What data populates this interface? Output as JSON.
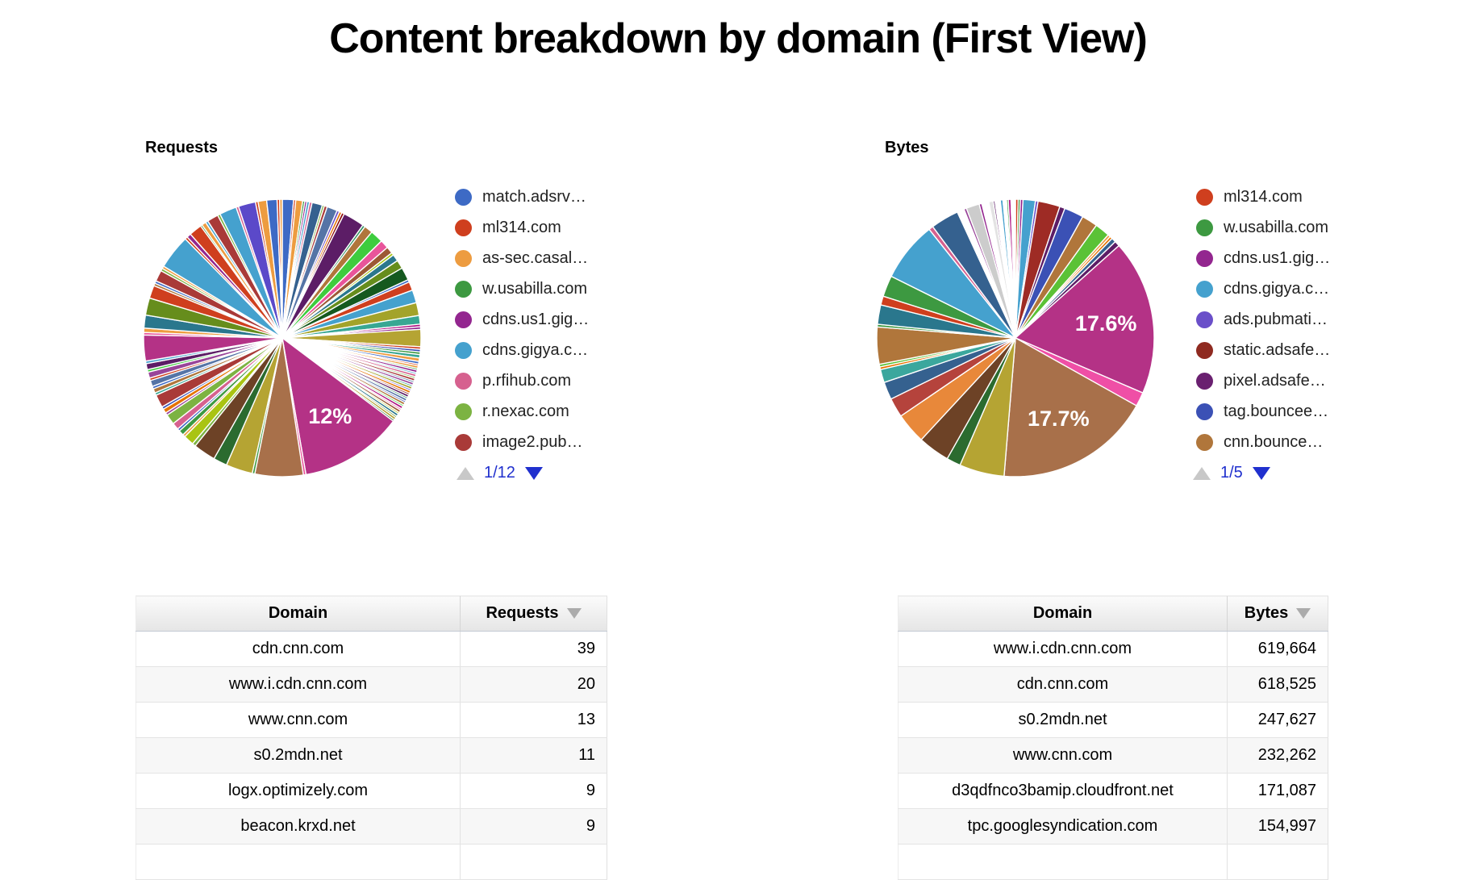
{
  "page": {
    "title": "Content breakdown by domain (First View)"
  },
  "colors": {
    "pagination_active": "#2030ce",
    "pagination_disabled": "#c8c8c8",
    "sort_arrow": "#ababab",
    "percent_label": "#ffffff"
  },
  "chart_data": [
    {
      "type": "pie",
      "section_label": "Requests",
      "legend_position": "right",
      "legend_page": "1/12",
      "legend": [
        {
          "label": "match.adsrv…",
          "color": "#3d6ac5"
        },
        {
          "label": "ml314.com",
          "color": "#cf3f1e"
        },
        {
          "label": "as-sec.casal…",
          "color": "#ed9c40"
        },
        {
          "label": "w.usabilla.com",
          "color": "#3d9941"
        },
        {
          "label": "cdns.us1.gig…",
          "color": "#93268f"
        },
        {
          "label": "cdns.gigya.c…",
          "color": "#45a1ce"
        },
        {
          "label": "p.rfihub.com",
          "color": "#d6618f"
        },
        {
          "label": "r.nexac.com",
          "color": "#7cb342"
        },
        {
          "label": "image2.pub…",
          "color": "#a93a38"
        }
      ],
      "slices": [
        [
          1.3,
          "#3d6ac5"
        ],
        [
          0.25,
          "#cf3f1e"
        ],
        [
          0.8,
          "#ed9c40"
        ],
        [
          0.25,
          "#3d9941"
        ],
        [
          0.25,
          "#93268f"
        ],
        [
          0.3,
          "#45a1ce"
        ],
        [
          0.3,
          "#d6618f"
        ],
        [
          1.2,
          "#35618f"
        ],
        [
          0.25,
          "#7cb342"
        ],
        [
          0.35,
          "#a93a38"
        ],
        [
          1.2,
          "#5574a6"
        ],
        [
          0.3,
          "#6a4fc9"
        ],
        [
          0.3,
          "#e67300"
        ],
        [
          0.3,
          "#8b0707"
        ],
        [
          2.5,
          "#5c1d66"
        ],
        [
          0.3,
          "#329262"
        ],
        [
          1.0,
          "#b0763b"
        ],
        [
          1.5,
          "#3ecc3e"
        ],
        [
          1.0,
          "#e8559a"
        ],
        [
          0.8,
          "#9c5935"
        ],
        [
          0.3,
          "#a9c413"
        ],
        [
          0.8,
          "#2a778d"
        ],
        [
          1.0,
          "#668d1c"
        ],
        [
          1.5,
          "#15591f"
        ],
        [
          0.3,
          "#3d6ac5"
        ],
        [
          1.0,
          "#cf3f1e"
        ],
        [
          1.5,
          "#45a1ce"
        ],
        [
          1.5,
          "#a3a32a"
        ],
        [
          1.0,
          "#38a793"
        ],
        [
          0.3,
          "#b01383"
        ],
        [
          0.3,
          "#93268f"
        ],
        [
          2.0,
          "#b5a433"
        ],
        [
          0.3,
          "#cf3f1e"
        ],
        [
          0.3,
          "#3b51b5"
        ],
        [
          0.3,
          "#3d9941"
        ],
        [
          0.4,
          "#38a793"
        ],
        [
          0.4,
          "#ed9c40"
        ],
        [
          0.3,
          "#3d6ac5"
        ],
        [
          0.2,
          "#cf3f1e"
        ],
        [
          0.3,
          "#ed9c40"
        ],
        [
          0.2,
          "#3d9941"
        ],
        [
          0.3,
          "#93268f"
        ],
        [
          0.2,
          "#45a1ce"
        ],
        [
          0.3,
          "#d6618f"
        ],
        [
          0.2,
          "#7cb342"
        ],
        [
          0.3,
          "#a93a38"
        ],
        [
          0.2,
          "#35618f"
        ],
        [
          0.3,
          "#994499"
        ],
        [
          0.2,
          "#38a793"
        ],
        [
          0.3,
          "#a3a32a"
        ],
        [
          0.2,
          "#6a4fc9"
        ],
        [
          0.3,
          "#e67300"
        ],
        [
          0.2,
          "#8b0707"
        ],
        [
          0.3,
          "#5c1d66"
        ],
        [
          0.2,
          "#329262"
        ],
        [
          0.3,
          "#5574a6"
        ],
        [
          0.2,
          "#3b51b5"
        ],
        [
          0.3,
          "#b0763b"
        ],
        [
          0.2,
          "#3ecc3e"
        ],
        [
          0.3,
          "#b01383"
        ],
        [
          0.2,
          "#e8559a"
        ],
        [
          0.3,
          "#9c5935"
        ],
        [
          0.2,
          "#a9c413"
        ],
        [
          0.3,
          "#2a778d"
        ],
        [
          0.2,
          "#668d1c"
        ],
        [
          0.3,
          "#b5a433"
        ],
        [
          0.2,
          "#15591f"
        ],
        [
          12.0,
          "#b43286",
          "12%"
        ],
        [
          0.3,
          "#e8559a"
        ],
        [
          5.6,
          "#a8704a"
        ],
        [
          0.3,
          "#3d9941"
        ],
        [
          3.1,
          "#b5a433"
        ],
        [
          1.6,
          "#2b6b2f"
        ],
        [
          2.6,
          "#6d4226"
        ],
        [
          0.4,
          "#7cb342"
        ],
        [
          1.2,
          "#a9c413"
        ],
        [
          0.3,
          "#ed9c40"
        ],
        [
          0.6,
          "#3d9941"
        ],
        [
          0.3,
          "#3d6ac5"
        ],
        [
          0.8,
          "#d6618f"
        ],
        [
          1.2,
          "#7cb342"
        ],
        [
          0.3,
          "#994499"
        ],
        [
          0.5,
          "#e67300"
        ],
        [
          0.3,
          "#3b51b5"
        ],
        [
          1.5,
          "#a93a38"
        ],
        [
          0.3,
          "#38a793"
        ],
        [
          0.5,
          "#b0763b"
        ],
        [
          0.3,
          "#3d6ac5"
        ],
        [
          0.7,
          "#5574a6"
        ],
        [
          0.3,
          "#cf3f1e"
        ],
        [
          0.7,
          "#994499"
        ],
        [
          0.3,
          "#3ecc3e"
        ],
        [
          0.7,
          "#5c1d66"
        ],
        [
          0.3,
          "#45a1ce"
        ],
        [
          3.0,
          "#b43286"
        ],
        [
          0.3,
          "#e8559a"
        ],
        [
          0.5,
          "#ed9c40"
        ],
        [
          1.5,
          "#2a778d"
        ],
        [
          2.0,
          "#668d1c"
        ],
        [
          1.5,
          "#cf3f1e"
        ],
        [
          0.3,
          "#b0763b"
        ],
        [
          0.3,
          "#3d6ac5"
        ],
        [
          1.3,
          "#a93a38"
        ],
        [
          0.3,
          "#7cb342"
        ],
        [
          0.3,
          "#ed9c40"
        ],
        [
          4.0,
          "#45a1ce"
        ],
        [
          0.3,
          "#cf3f1e"
        ],
        [
          0.5,
          "#93268f"
        ],
        [
          1.5,
          "#cf3f1e"
        ],
        [
          0.2,
          "#3d9941"
        ],
        [
          0.5,
          "#ed9c40"
        ],
        [
          0.3,
          "#45a1ce"
        ],
        [
          1.3,
          "#a93a38"
        ],
        [
          0.3,
          "#7cb342"
        ],
        [
          2.0,
          "#45a1ce"
        ],
        [
          0.3,
          "#d6618f"
        ],
        [
          2.0,
          "#5b49c9"
        ],
        [
          0.3,
          "#cf3f1e"
        ],
        [
          1.0,
          "#ed9c40"
        ],
        [
          1.2,
          "#3d6ac5"
        ],
        [
          0.3,
          "#cf3f1e"
        ],
        [
          0.3,
          "#ed9c40"
        ]
      ]
    },
    {
      "type": "pie",
      "section_label": "Bytes",
      "legend_position": "right",
      "legend_page": "1/5",
      "legend": [
        {
          "label": "ml314.com",
          "color": "#cf3f1e"
        },
        {
          "label": "w.usabilla.com",
          "color": "#3d9941"
        },
        {
          "label": "cdns.us1.gig…",
          "color": "#93268f"
        },
        {
          "label": "cdns.gigya.c…",
          "color": "#45a1ce"
        },
        {
          "label": "ads.pubmati…",
          "color": "#6a4fc9"
        },
        {
          "label": "static.adsafe…",
          "color": "#8f2a20"
        },
        {
          "label": "pixel.adsafe…",
          "color": "#6a2070"
        },
        {
          "label": "tag.bouncee…",
          "color": "#3b51b5"
        },
        {
          "label": "cnn.bounce…",
          "color": "#b0763b"
        }
      ],
      "slices": [
        [
          0.3,
          "#cf3f1e"
        ],
        [
          0.25,
          "#3d9941"
        ],
        [
          0.3,
          "#93268f"
        ],
        [
          1.4,
          "#45a1ce"
        ],
        [
          0.3,
          "#6a4fc9"
        ],
        [
          2.5,
          "#9e2b25"
        ],
        [
          0.6,
          "#5c1d66"
        ],
        [
          2.2,
          "#3b51b5"
        ],
        [
          1.8,
          "#b0763b"
        ],
        [
          1.7,
          "#5bc236"
        ],
        [
          0.3,
          "#ed9c40"
        ],
        [
          0.3,
          "#e67300"
        ],
        [
          0.5,
          "#35618f"
        ],
        [
          0.6,
          "#5c1d66"
        ],
        [
          17.6,
          "#b43286",
          "17.6%"
        ],
        [
          1.6,
          "#ef4fa6"
        ],
        [
          17.7,
          "#a8704a",
          "17.7%"
        ],
        [
          5.1,
          "#b5a433"
        ],
        [
          1.6,
          "#2b6b2f"
        ],
        [
          3.6,
          "#6d4226"
        ],
        [
          3.5,
          "#e8883a"
        ],
        [
          2.2,
          "#b5433c"
        ],
        [
          2.0,
          "#35618f"
        ],
        [
          1.5,
          "#3ba79d"
        ],
        [
          0.3,
          "#e67300"
        ],
        [
          0.3,
          "#5bc236"
        ],
        [
          4.2,
          "#b0763b"
        ],
        [
          0.3,
          "#3d9941"
        ],
        [
          2.2,
          "#2a778d"
        ],
        [
          1.0,
          "#cf3f1e"
        ],
        [
          2.4,
          "#3d9941"
        ],
        [
          6.8,
          "#45a1ce"
        ],
        [
          0.5,
          "#d6618f"
        ],
        [
          3.2,
          "#35618f"
        ],
        [
          0.8,
          "#ffffff"
        ],
        [
          0.3,
          "#994499"
        ],
        [
          1.5,
          "#cccccc"
        ],
        [
          0.3,
          "#93268f"
        ],
        [
          0.8,
          "#ffffff"
        ],
        [
          0.5,
          "#e3e3e3"
        ],
        [
          0.2,
          "#5c1d66"
        ],
        [
          0.6,
          "#ffffff"
        ],
        [
          0.3,
          "#45a1ce"
        ],
        [
          0.4,
          "#ffffff"
        ],
        [
          0.2,
          "#3d9941"
        ],
        [
          0.3,
          "#b01383"
        ],
        [
          0.5,
          "#ffffff"
        ]
      ]
    }
  ],
  "requests_table": {
    "headers": [
      "Domain",
      "Requests"
    ],
    "rows": [
      [
        "cdn.cnn.com",
        "39"
      ],
      [
        "www.i.cdn.cnn.com",
        "20"
      ],
      [
        "www.cnn.com",
        "13"
      ],
      [
        "s0.2mdn.net",
        "11"
      ],
      [
        "logx.optimizely.com",
        "9"
      ],
      [
        "beacon.krxd.net",
        "9"
      ]
    ]
  },
  "bytes_table": {
    "headers": [
      "Domain",
      "Bytes"
    ],
    "rows": [
      [
        "www.i.cdn.cnn.com",
        "619,664"
      ],
      [
        "cdn.cnn.com",
        "618,525"
      ],
      [
        "s0.2mdn.net",
        "247,627"
      ],
      [
        "www.cnn.com",
        "232,262"
      ],
      [
        "d3qdfnco3bamip.cloudfront.net",
        "171,087"
      ],
      [
        "tpc.googlesyndication.com",
        "154,997"
      ]
    ]
  }
}
